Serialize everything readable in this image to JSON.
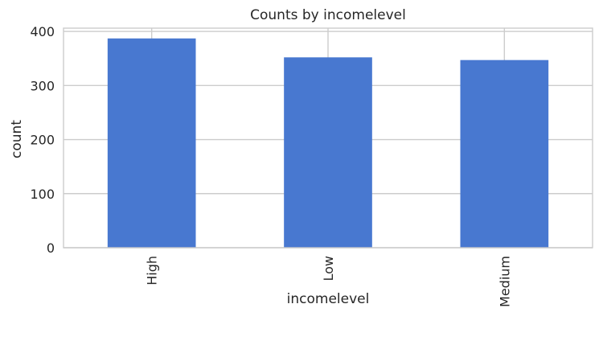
{
  "chart_data": {
    "type": "bar",
    "title": "Counts by incomelevel",
    "xlabel": "incomelevel",
    "ylabel": "count",
    "categories": [
      "High",
      "Low",
      "Medium"
    ],
    "values": [
      387,
      352,
      347
    ],
    "ylim": [
      0,
      406
    ],
    "yticks": [
      0,
      100,
      200,
      300,
      400
    ],
    "grid": true,
    "bar_color": "#4878d0",
    "grid_color": "#cccccc",
    "frame_color": "#cccccc"
  }
}
